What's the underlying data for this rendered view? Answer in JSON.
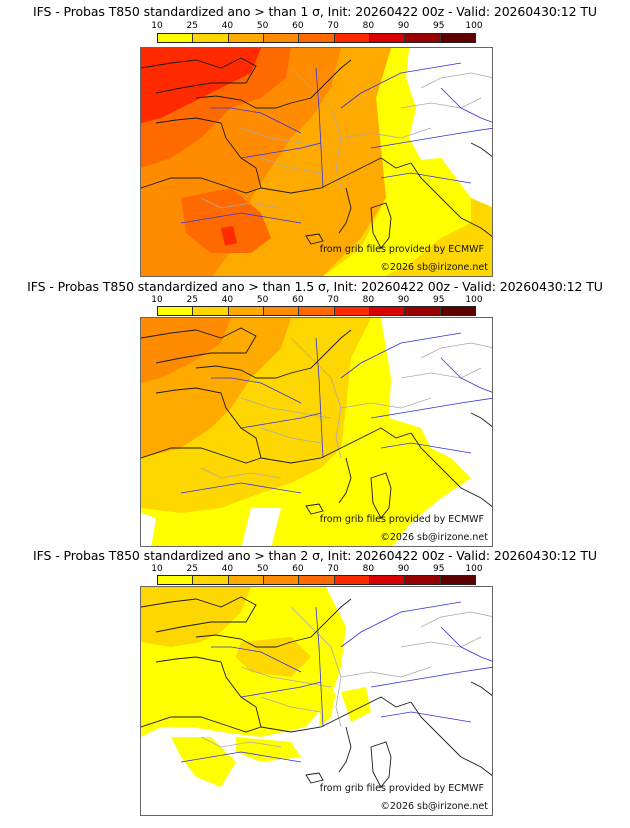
{
  "panels": [
    {
      "title": "IFS - Probas T850  standardized ano > than 1 σ, Init: 20260422 00z - Valid: 20260430:12 TU",
      "threshold_sigma": "1",
      "credit_source": "from grib files provided by ECMWF",
      "credit_copyright": "©2026 sb@irizone.net"
    },
    {
      "title": "IFS - Probas T850  standardized ano > than 1.5 σ, Init: 20260422 00z - Valid: 20260430:12 TU",
      "threshold_sigma": "1.5",
      "credit_source": "from grib files provided by ECMWF",
      "credit_copyright": "©2026 sb@irizone.net"
    },
    {
      "title": "IFS - Probas T850  standardized ano > than 2 σ, Init: 20260422 00z - Valid: 20260430:12 TU",
      "threshold_sigma": "2",
      "credit_source": "from grib files provided by ECMWF",
      "credit_copyright": "©2026 sb@irizone.net"
    }
  ],
  "colorbar": {
    "ticks": [
      "10",
      "25",
      "40",
      "50",
      "60",
      "70",
      "80",
      "90",
      "95",
      "100"
    ],
    "colors": [
      "#ffff00",
      "#ffd700",
      "#ffaa00",
      "#ff8c00",
      "#ff6a00",
      "#ff2a00",
      "#d80000",
      "#990000",
      "#5c0000"
    ],
    "unit": "%"
  },
  "map_meta": {
    "model": "IFS",
    "variable": "T850 standardized anomaly probability",
    "init": "20260422 00z",
    "valid": "20260430:12 TU",
    "region": "Western Europe (France, Iberia, Italy)"
  },
  "colors": {
    "coast": "#1a1a1a",
    "rivers": "#3333dd",
    "borders": "#aaaaaa"
  }
}
